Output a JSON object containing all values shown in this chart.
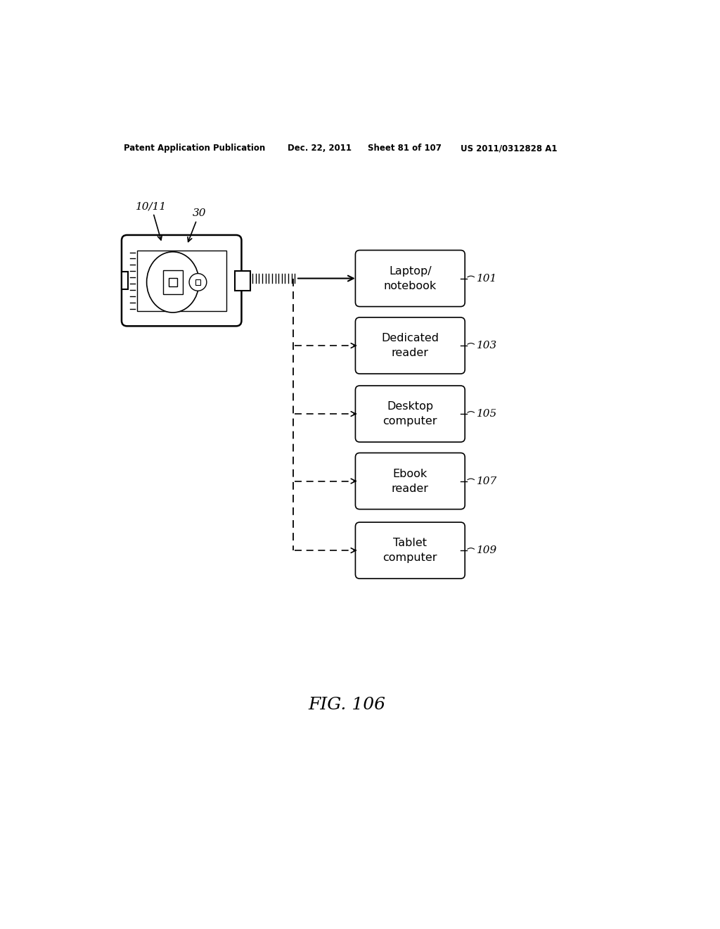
{
  "bg_color": "#ffffff",
  "header_text": "Patent Application Publication",
  "header_date": "Dec. 22, 2011",
  "header_sheet": "Sheet 81 of 107",
  "header_patent": "US 2011/0312828 A1",
  "fig_label": "FIG. 106",
  "device_label": "10/11",
  "device_sub_label": "30",
  "boxes": [
    {
      "label": "Laptop/\nnotebook",
      "ref": "101"
    },
    {
      "label": "Dedicated\nreader",
      "ref": "103"
    },
    {
      "label": "Desktop\ncomputer",
      "ref": "105"
    },
    {
      "label": "Ebook\nreader",
      "ref": "107"
    },
    {
      "label": "Tablet\ncomputer",
      "ref": "109"
    }
  ],
  "line_color": "#000000",
  "text_color": "#000000"
}
